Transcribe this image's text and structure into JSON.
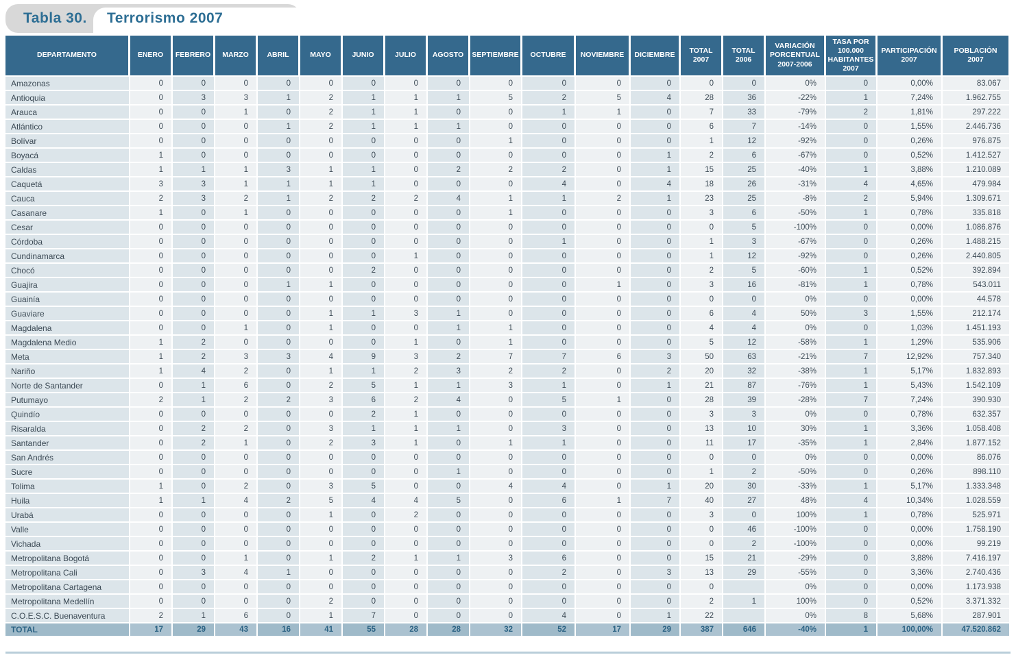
{
  "title": {
    "label": "Tabla 30.",
    "subtitle": "Terrorismo 2007"
  },
  "colors": {
    "header_bg": "#35698d",
    "title_color": "#2d6e94",
    "col_light": "#eef1f3",
    "col_dark": "#dce5ea",
    "total_row_light": "#abc2d0",
    "total_row_dark": "#9fbac9",
    "total_text": "#2c6384",
    "body_text": "#3c4a55"
  },
  "table": {
    "columns": [
      "DEPARTAMENTO",
      "ENERO",
      "FEBRERO",
      "MARZO",
      "ABRIL",
      "MAYO",
      "JUNIO",
      "JULIO",
      "AGOSTO",
      "SEPTIEMBRE",
      "OCTUBRE",
      "NOVIEMBRE",
      "DICIEMBRE",
      "TOTAL\n2007",
      "TOTAL\n2006",
      "VARIACIÓN\nPORCENTUAL\n2007-2006",
      "TASA POR\n100.000\nHABITANTES\n2007",
      "PARTICIPACIÓN\n2007",
      "POBLACIÓN\n2007"
    ],
    "rows": [
      [
        "Amazonas",
        "0",
        "0",
        "0",
        "0",
        "0",
        "0",
        "0",
        "0",
        "0",
        "0",
        "0",
        "0",
        "0",
        "0",
        "0%",
        "0",
        "0,00%",
        "83.067"
      ],
      [
        "Antioquia",
        "0",
        "3",
        "3",
        "1",
        "2",
        "1",
        "1",
        "1",
        "5",
        "2",
        "5",
        "4",
        "28",
        "36",
        "-22%",
        "1",
        "7,24%",
        "1.962.755"
      ],
      [
        "Arauca",
        "0",
        "0",
        "1",
        "0",
        "2",
        "1",
        "1",
        "0",
        "0",
        "1",
        "1",
        "0",
        "7",
        "33",
        "-79%",
        "2",
        "1,81%",
        "297.222"
      ],
      [
        "Atlántico",
        "0",
        "0",
        "0",
        "1",
        "2",
        "1",
        "1",
        "1",
        "0",
        "0",
        "0",
        "0",
        "6",
        "7",
        "-14%",
        "0",
        "1,55%",
        "2.446.736"
      ],
      [
        "Bolívar",
        "0",
        "0",
        "0",
        "0",
        "0",
        "0",
        "0",
        "0",
        "1",
        "0",
        "0",
        "0",
        "1",
        "12",
        "-92%",
        "0",
        "0,26%",
        "976.875"
      ],
      [
        "Boyacá",
        "1",
        "0",
        "0",
        "0",
        "0",
        "0",
        "0",
        "0",
        "0",
        "0",
        "0",
        "1",
        "2",
        "6",
        "-67%",
        "0",
        "0,52%",
        "1.412.527"
      ],
      [
        "Caldas",
        "1",
        "1",
        "1",
        "3",
        "1",
        "1",
        "0",
        "2",
        "2",
        "2",
        "0",
        "1",
        "15",
        "25",
        "-40%",
        "1",
        "3,88%",
        "1.210.089"
      ],
      [
        "Caquetá",
        "3",
        "3",
        "1",
        "1",
        "1",
        "1",
        "0",
        "0",
        "0",
        "4",
        "0",
        "4",
        "18",
        "26",
        "-31%",
        "4",
        "4,65%",
        "479.984"
      ],
      [
        "Cauca",
        "2",
        "3",
        "2",
        "1",
        "2",
        "2",
        "2",
        "4",
        "1",
        "1",
        "2",
        "1",
        "23",
        "25",
        "-8%",
        "2",
        "5,94%",
        "1.309.671"
      ],
      [
        "Casanare",
        "1",
        "0",
        "1",
        "0",
        "0",
        "0",
        "0",
        "0",
        "1",
        "0",
        "0",
        "0",
        "3",
        "6",
        "-50%",
        "1",
        "0,78%",
        "335.818"
      ],
      [
        "Cesar",
        "0",
        "0",
        "0",
        "0",
        "0",
        "0",
        "0",
        "0",
        "0",
        "0",
        "0",
        "0",
        "0",
        "5",
        "-100%",
        "0",
        "0,00%",
        "1.086.876"
      ],
      [
        "Córdoba",
        "0",
        "0",
        "0",
        "0",
        "0",
        "0",
        "0",
        "0",
        "0",
        "1",
        "0",
        "0",
        "1",
        "3",
        "-67%",
        "0",
        "0,26%",
        "1.488.215"
      ],
      [
        "Cundinamarca",
        "0",
        "0",
        "0",
        "0",
        "0",
        "0",
        "1",
        "0",
        "0",
        "0",
        "0",
        "0",
        "1",
        "12",
        "-92%",
        "0",
        "0,26%",
        "2.440.805"
      ],
      [
        "Chocó",
        "0",
        "0",
        "0",
        "0",
        "0",
        "2",
        "0",
        "0",
        "0",
        "0",
        "0",
        "0",
        "2",
        "5",
        "-60%",
        "1",
        "0,52%",
        "392.894"
      ],
      [
        "Guajira",
        "0",
        "0",
        "0",
        "1",
        "1",
        "0",
        "0",
        "0",
        "0",
        "0",
        "1",
        "0",
        "3",
        "16",
        "-81%",
        "1",
        "0,78%",
        "543.011"
      ],
      [
        "Guainía",
        "0",
        "0",
        "0",
        "0",
        "0",
        "0",
        "0",
        "0",
        "0",
        "0",
        "0",
        "0",
        "0",
        "0",
        "0%",
        "0",
        "0,00%",
        "44.578"
      ],
      [
        "Guaviare",
        "0",
        "0",
        "0",
        "0",
        "1",
        "1",
        "3",
        "1",
        "0",
        "0",
        "0",
        "0",
        "6",
        "4",
        "50%",
        "3",
        "1,55%",
        "212.174"
      ],
      [
        "Magdalena",
        "0",
        "0",
        "1",
        "0",
        "1",
        "0",
        "0",
        "1",
        "1",
        "0",
        "0",
        "0",
        "4",
        "4",
        "0%",
        "0",
        "1,03%",
        "1.451.193"
      ],
      [
        "Magdalena Medio",
        "1",
        "2",
        "0",
        "0",
        "0",
        "0",
        "1",
        "0",
        "1",
        "0",
        "0",
        "0",
        "5",
        "12",
        "-58%",
        "1",
        "1,29%",
        "535.906"
      ],
      [
        "Meta",
        "1",
        "2",
        "3",
        "3",
        "4",
        "9",
        "3",
        "2",
        "7",
        "7",
        "6",
        "3",
        "50",
        "63",
        "-21%",
        "7",
        "12,92%",
        "757.340"
      ],
      [
        "Nariño",
        "1",
        "4",
        "2",
        "0",
        "1",
        "1",
        "2",
        "3",
        "2",
        "2",
        "0",
        "2",
        "20",
        "32",
        "-38%",
        "1",
        "5,17%",
        "1.832.893"
      ],
      [
        "Norte de Santander",
        "0",
        "1",
        "6",
        "0",
        "2",
        "5",
        "1",
        "1",
        "3",
        "1",
        "0",
        "1",
        "21",
        "87",
        "-76%",
        "1",
        "5,43%",
        "1.542.109"
      ],
      [
        "Putumayo",
        "2",
        "1",
        "2",
        "2",
        "3",
        "6",
        "2",
        "4",
        "0",
        "5",
        "1",
        "0",
        "28",
        "39",
        "-28%",
        "7",
        "7,24%",
        "390.930"
      ],
      [
        "Quindío",
        "0",
        "0",
        "0",
        "0",
        "0",
        "2",
        "1",
        "0",
        "0",
        "0",
        "0",
        "0",
        "3",
        "3",
        "0%",
        "0",
        "0,78%",
        "632.357"
      ],
      [
        "Risaralda",
        "0",
        "2",
        "2",
        "0",
        "3",
        "1",
        "1",
        "1",
        "0",
        "3",
        "0",
        "0",
        "13",
        "10",
        "30%",
        "1",
        "3,36%",
        "1.058.408"
      ],
      [
        "Santander",
        "0",
        "2",
        "1",
        "0",
        "2",
        "3",
        "1",
        "0",
        "1",
        "1",
        "0",
        "0",
        "11",
        "17",
        "-35%",
        "1",
        "2,84%",
        "1.877.152"
      ],
      [
        "San Andrés",
        "0",
        "0",
        "0",
        "0",
        "0",
        "0",
        "0",
        "0",
        "0",
        "0",
        "0",
        "0",
        "0",
        "0",
        "0%",
        "0",
        "0,00%",
        "86.076"
      ],
      [
        "Sucre",
        "0",
        "0",
        "0",
        "0",
        "0",
        "0",
        "0",
        "1",
        "0",
        "0",
        "0",
        "0",
        "1",
        "2",
        "-50%",
        "0",
        "0,26%",
        "898.110"
      ],
      [
        "Tolima",
        "1",
        "0",
        "2",
        "0",
        "3",
        "5",
        "0",
        "0",
        "4",
        "4",
        "0",
        "1",
        "20",
        "30",
        "-33%",
        "1",
        "5,17%",
        "1.333.348"
      ],
      [
        "Huila",
        "1",
        "1",
        "4",
        "2",
        "5",
        "4",
        "4",
        "5",
        "0",
        "6",
        "1",
        "7",
        "40",
        "27",
        "48%",
        "4",
        "10,34%",
        "1.028.559"
      ],
      [
        "Urabá",
        "0",
        "0",
        "0",
        "0",
        "1",
        "0",
        "2",
        "0",
        "0",
        "0",
        "0",
        "0",
        "3",
        "0",
        "100%",
        "1",
        "0,78%",
        "525.971"
      ],
      [
        "Valle",
        "0",
        "0",
        "0",
        "0",
        "0",
        "0",
        "0",
        "0",
        "0",
        "0",
        "0",
        "0",
        "0",
        "46",
        "-100%",
        "0",
        "0,00%",
        "1.758.190"
      ],
      [
        "Vichada",
        "0",
        "0",
        "0",
        "0",
        "0",
        "0",
        "0",
        "0",
        "0",
        "0",
        "0",
        "0",
        "0",
        "2",
        "-100%",
        "0",
        "0,00%",
        "99.219"
      ],
      [
        "Metropolitana Bogotá",
        "0",
        "0",
        "1",
        "0",
        "1",
        "2",
        "1",
        "1",
        "3",
        "6",
        "0",
        "0",
        "15",
        "21",
        "-29%",
        "0",
        "3,88%",
        "7.416.197"
      ],
      [
        "Metropolitana Cali",
        "0",
        "3",
        "4",
        "1",
        "0",
        "0",
        "0",
        "0",
        "0",
        "2",
        "0",
        "3",
        "13",
        "29",
        "-55%",
        "0",
        "3,36%",
        "2.740.436"
      ],
      [
        "Metropolitana Cartagena",
        "0",
        "0",
        "0",
        "0",
        "0",
        "0",
        "0",
        "0",
        "0",
        "0",
        "0",
        "0",
        "0",
        "",
        "0%",
        "0",
        "0,00%",
        "1.173.938"
      ],
      [
        "Metropolitana Medellín",
        "0",
        "0",
        "0",
        "0",
        "2",
        "0",
        "0",
        "0",
        "0",
        "0",
        "0",
        "0",
        "2",
        "1",
        "100%",
        "0",
        "0,52%",
        "3.371.332"
      ],
      [
        "C.O.E.S.C. Buenaventura",
        "2",
        "1",
        "6",
        "0",
        "1",
        "7",
        "0",
        "0",
        "0",
        "4",
        "0",
        "1",
        "22",
        "",
        "0%",
        "8",
        "5,68%",
        "287.901"
      ]
    ],
    "total_row": [
      "TOTAL",
      "17",
      "29",
      "43",
      "16",
      "41",
      "55",
      "28",
      "28",
      "32",
      "52",
      "17",
      "29",
      "387",
      "646",
      "-40%",
      "1",
      "100,00%",
      "47.520.862"
    ]
  }
}
